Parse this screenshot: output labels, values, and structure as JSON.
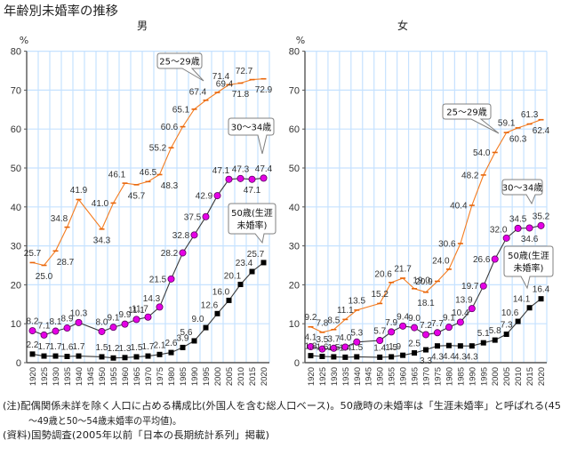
{
  "title": "年齢別未婚率の推移",
  "chart_data": [
    {
      "type": "line",
      "title": "男",
      "xlabel": "",
      "ylabel": "%",
      "ylim": [
        0,
        80
      ],
      "yticks": [
        0,
        10,
        20,
        30,
        40,
        50,
        60,
        70,
        80
      ],
      "grid": true,
      "legend": "callouts",
      "categories": [
        "1920",
        "1925",
        "1930",
        "1935",
        "1940",
        "1945",
        "1950",
        "1955",
        "1960",
        "1965",
        "1970",
        "1975",
        "1980",
        "1985",
        "1990",
        "1995",
        "2000",
        "2005",
        "2010",
        "2015",
        "2020"
      ],
      "series": [
        {
          "name": "25〜29歳",
          "callout_lines": [
            "25〜29歳"
          ],
          "line_color": "#f47c20",
          "marker": "dash",
          "marker_color": "#e8650a",
          "values": [
            25.7,
            25.0,
            28.7,
            34.8,
            41.9,
            null,
            34.3,
            41.0,
            46.1,
            45.7,
            46.5,
            48.3,
            55.2,
            60.6,
            65.1,
            67.4,
            69.4,
            71.4,
            71.8,
            72.7,
            72.9
          ]
        },
        {
          "name": "30〜34歳",
          "callout_lines": [
            "30〜34歳"
          ],
          "line_color": "#3a3a3a",
          "marker": "circle",
          "marker_color": "#e600e6",
          "values": [
            8.2,
            7.1,
            8.1,
            8.9,
            10.3,
            null,
            8.0,
            9.1,
            9.9,
            11.1,
            11.7,
            14.3,
            21.5,
            28.2,
            32.8,
            37.5,
            42.9,
            47.1,
            47.3,
            47.1,
            47.4
          ]
        },
        {
          "name": "50歳(生涯未婚率)",
          "callout_lines": [
            "50歳(生涯",
            "未婚率)"
          ],
          "line_color": "#3a3a3a",
          "marker": "square",
          "marker_color": "#000000",
          "values": [
            2.2,
            1.7,
            1.7,
            1.6,
            1.7,
            null,
            1.5,
            1.2,
            1.3,
            1.5,
            1.7,
            2.1,
            2.6,
            3.9,
            5.6,
            9.0,
            12.6,
            16.0,
            20.1,
            23.4,
            25.7
          ]
        }
      ]
    },
    {
      "type": "line",
      "title": "女",
      "xlabel": "",
      "ylabel": "%",
      "ylim": [
        0,
        80
      ],
      "yticks": [
        0,
        10,
        20,
        30,
        40,
        50,
        60,
        70,
        80
      ],
      "grid": true,
      "legend": "callouts",
      "categories": [
        "1920",
        "1925",
        "1930",
        "1935",
        "1940",
        "1945",
        "1950",
        "1955",
        "1960",
        "1965",
        "1970",
        "1975",
        "1980",
        "1985",
        "1990",
        "1995",
        "2000",
        "2005",
        "2010",
        "2015",
        "2020"
      ],
      "series": [
        {
          "name": "25〜29歳",
          "callout_lines": [
            "25〜29歳"
          ],
          "line_color": "#f47c20",
          "marker": "dash",
          "marker_color": "#e8650a",
          "values": [
            9.2,
            7.8,
            8.5,
            11.1,
            13.5,
            null,
            15.2,
            20.6,
            21.7,
            19.0,
            18.1,
            20.9,
            24.0,
            30.6,
            40.4,
            48.2,
            54.0,
            59.1,
            60.3,
            61.3,
            62.4
          ]
        },
        {
          "name": "30〜34歳",
          "callout_lines": [
            "30〜34歳"
          ],
          "line_color": "#3a3a3a",
          "marker": "circle",
          "marker_color": "#e600e6",
          "values": [
            4.1,
            3.5,
            3.7,
            4.0,
            5.3,
            null,
            5.7,
            7.9,
            9.4,
            9.0,
            7.2,
            7.7,
            9.1,
            10.4,
            13.9,
            19.7,
            26.6,
            32.0,
            34.5,
            34.6,
            35.2
          ]
        },
        {
          "name": "50歳(生涯未婚率)",
          "callout_lines": [
            "50歳(生涯",
            "未婚率)"
          ],
          "line_color": "#3a3a3a",
          "marker": "square",
          "marker_color": "#000000",
          "values": [
            1.8,
            1.6,
            1.5,
            1.4,
            1.5,
            null,
            1.4,
            1.5,
            1.9,
            2.5,
            3.3,
            4.3,
            4.4,
            4.3,
            4.3,
            5.1,
            5.8,
            7.3,
            10.6,
            14.1,
            16.4
          ]
        }
      ]
    }
  ],
  "notes": [
    "(注)配偶関係未詳を除く人口に占める構成比(外国人を含む総人口ベース)。50歳時の未婚率は「生涯未婚率」と呼ばれる(45",
    "〜49歳と50〜54歳未婚率の平均値)。",
    "(資料)国勢調査(2005年以前「日本の長期統計系列」掲載)"
  ]
}
